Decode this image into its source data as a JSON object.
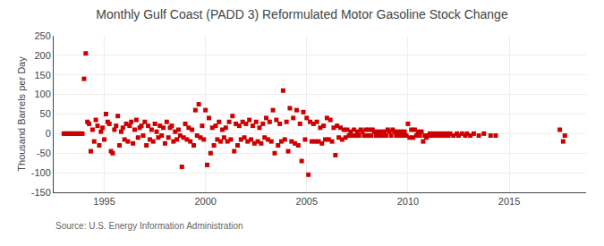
{
  "chart_data": {
    "type": "scatter",
    "title": "Monthly Gulf Coast (PADD 3) Reformulated Motor Gasoline Stock Change",
    "ylabel": "Thousand Barrels per Day",
    "annotations": [
      "Source: U.S. Energy Information Administration"
    ],
    "color": "#cc0000",
    "marker": "square",
    "grid": true,
    "xlim": [
      1992.5,
      2018.8
    ],
    "xticks": [
      1995,
      2000,
      2005,
      2010,
      2015
    ],
    "ylim": [
      -150,
      250
    ],
    "yticks": [
      -150,
      -100,
      -50,
      0,
      50,
      100,
      150,
      200,
      250
    ],
    "x": [
      1993.0,
      1993.083,
      1993.167,
      1993.25,
      1993.333,
      1993.417,
      1993.5,
      1993.583,
      1993.667,
      1993.75,
      1993.833,
      1993.917,
      1994.0,
      1994.083,
      1994.167,
      1994.25,
      1994.333,
      1994.417,
      1994.5,
      1994.583,
      1994.667,
      1994.75,
      1994.833,
      1994.917,
      1995.0,
      1995.083,
      1995.167,
      1995.25,
      1995.333,
      1995.417,
      1995.5,
      1995.583,
      1995.667,
      1995.75,
      1995.833,
      1995.917,
      1996.0,
      1996.083,
      1996.167,
      1996.25,
      1996.333,
      1996.417,
      1996.5,
      1996.583,
      1996.667,
      1996.75,
      1996.833,
      1996.917,
      1997.0,
      1997.083,
      1997.167,
      1997.25,
      1997.333,
      1997.417,
      1997.5,
      1997.583,
      1997.667,
      1997.75,
      1997.833,
      1997.917,
      1998.0,
      1998.083,
      1998.167,
      1998.25,
      1998.333,
      1998.417,
      1998.5,
      1998.583,
      1998.667,
      1998.75,
      1998.833,
      1998.917,
      1999.0,
      1999.083,
      1999.167,
      1999.25,
      1999.333,
      1999.417,
      1999.5,
      1999.583,
      1999.667,
      1999.75,
      1999.833,
      1999.917,
      2000.0,
      2000.083,
      2000.167,
      2000.25,
      2000.333,
      2000.417,
      2000.5,
      2000.583,
      2000.667,
      2000.75,
      2000.833,
      2000.917,
      2001.0,
      2001.083,
      2001.167,
      2001.25,
      2001.333,
      2001.417,
      2001.5,
      2001.583,
      2001.667,
      2001.75,
      2001.833,
      2001.917,
      2002.0,
      2002.083,
      2002.167,
      2002.25,
      2002.333,
      2002.417,
      2002.5,
      2002.583,
      2002.667,
      2002.75,
      2002.833,
      2002.917,
      2003.0,
      2003.083,
      2003.167,
      2003.25,
      2003.333,
      2003.417,
      2003.5,
      2003.583,
      2003.667,
      2003.75,
      2003.833,
      2003.917,
      2004.0,
      2004.083,
      2004.167,
      2004.25,
      2004.333,
      2004.417,
      2004.5,
      2004.583,
      2004.667,
      2004.75,
      2004.833,
      2004.917,
      2005.0,
      2005.083,
      2005.167,
      2005.25,
      2005.333,
      2005.417,
      2005.5,
      2005.583,
      2005.667,
      2005.75,
      2005.833,
      2005.917,
      2006.0,
      2006.083,
      2006.167,
      2006.25,
      2006.333,
      2006.417,
      2006.5,
      2006.583,
      2006.667,
      2006.75,
      2006.833,
      2006.917,
      2007.0,
      2007.083,
      2007.167,
      2007.25,
      2007.333,
      2007.417,
      2007.5,
      2007.583,
      2007.667,
      2007.75,
      2007.833,
      2007.917,
      2008.0,
      2008.083,
      2008.167,
      2008.25,
      2008.333,
      2008.417,
      2008.5,
      2008.583,
      2008.667,
      2008.75,
      2008.833,
      2008.917,
      2009.0,
      2009.083,
      2009.167,
      2009.25,
      2009.333,
      2009.417,
      2009.5,
      2009.583,
      2009.667,
      2009.75,
      2009.833,
      2009.917,
      2010.0,
      2010.083,
      2010.167,
      2010.25,
      2010.333,
      2010.417,
      2010.5,
      2010.583,
      2010.667,
      2010.75,
      2010.833,
      2010.917,
      2011.0,
      2011.083,
      2011.167,
      2011.25,
      2011.333,
      2011.417,
      2011.5,
      2011.583,
      2011.667,
      2011.75,
      2011.833,
      2011.917,
      2012.0,
      2012.083,
      2012.25,
      2012.417,
      2012.5,
      2012.667,
      2012.833,
      2012.917,
      2013.083,
      2013.25,
      2013.5,
      2013.75,
      2014.083,
      2014.333,
      2017.5,
      2017.667,
      2017.75
    ],
    "values": [
      0.0,
      0.0,
      0.0,
      0.0,
      0.0,
      0.0,
      0.0,
      0.0,
      0.0,
      0.0,
      0.0,
      0.0,
      140.0,
      205.0,
      30.0,
      25.0,
      -45.0,
      10.0,
      -20.0,
      35.0,
      20.0,
      -30.0,
      5.0,
      15.0,
      -15.0,
      50.0,
      30.0,
      25.0,
      -45.0,
      -50.0,
      10.0,
      20.0,
      45.0,
      -30.0,
      5.0,
      15.0,
      -15.0,
      25.0,
      -20.0,
      20.0,
      30.0,
      -25.0,
      10.0,
      35.0,
      -10.0,
      15.0,
      20.0,
      -5.0,
      30.0,
      -30.0,
      20.0,
      -15.0,
      10.0,
      -20.0,
      25.0,
      5.0,
      -10.0,
      20.0,
      -5.0,
      15.0,
      -25.0,
      30.0,
      -10.0,
      15.0,
      20.0,
      -20.0,
      5.0,
      -15.0,
      10.0,
      -5.0,
      -85.0,
      -10.0,
      25.0,
      -15.0,
      15.0,
      -20.0,
      10.0,
      -30.0,
      60.0,
      -5.0,
      75.0,
      -10.0,
      20.0,
      -15.0,
      60.0,
      -80.0,
      40.0,
      -50.0,
      15.0,
      -30.0,
      20.0,
      -15.0,
      30.0,
      -20.0,
      10.0,
      -10.0,
      15.0,
      -20.0,
      30.0,
      -15.0,
      45.0,
      -45.0,
      25.0,
      -30.0,
      20.0,
      -15.0,
      30.0,
      -10.0,
      25.0,
      -20.0,
      35.0,
      -15.0,
      20.0,
      -25.0,
      30.0,
      -20.0,
      15.0,
      -25.0,
      25.0,
      -10.0,
      40.0,
      -15.0,
      30.0,
      -20.0,
      60.0,
      -50.0,
      35.0,
      -30.0,
      25.0,
      -20.0,
      110.0,
      -15.0,
      30.0,
      -45.0,
      65.0,
      -20.0,
      40.0,
      -25.0,
      60.0,
      -30.0,
      25.0,
      -70.0,
      55.0,
      -15.0,
      40.0,
      -105.0,
      30.0,
      -20.0,
      25.0,
      -20.0,
      30.0,
      -20.0,
      15.0,
      -25.0,
      20.0,
      -15.0,
      40.0,
      -15.0,
      35.0,
      -20.0,
      15.0,
      -55.0,
      20.0,
      -10.0,
      15.0,
      -15.0,
      10.0,
      -10.0,
      10.0,
      -5.0,
      5.0,
      -5.0,
      10.0,
      -5.0,
      5.0,
      -5.0,
      10.0,
      5.0,
      -5.0,
      10.0,
      -5.0,
      10.0,
      -5.0,
      10.0,
      5.0,
      -5.0,
      5.0,
      -5.0,
      5.0,
      -5.0,
      5.0,
      -5.0,
      10.0,
      5.0,
      -5.0,
      10.0,
      5.0,
      -5.0,
      5.0,
      -5.0,
      5.0,
      -5.0,
      5.0,
      -5.0,
      25.0,
      -10.0,
      10.0,
      -10.0,
      10.0,
      -5.0,
      5.0,
      -5.0,
      5.0,
      -20.0,
      -5.0,
      -10.0,
      -5.0,
      0.0,
      -5.0,
      0.0,
      -5.0,
      0.0,
      -5.0,
      0.0,
      -5.0,
      0.0,
      -5.0,
      0.0,
      -5.0,
      0.0,
      -5.0,
      0.0,
      -5.0,
      0.0,
      -5.0,
      0.0,
      -5.0,
      0.0,
      -5.0,
      0.0,
      -5.0,
      -5.0,
      10.0,
      -20.0,
      -5.0
    ]
  }
}
